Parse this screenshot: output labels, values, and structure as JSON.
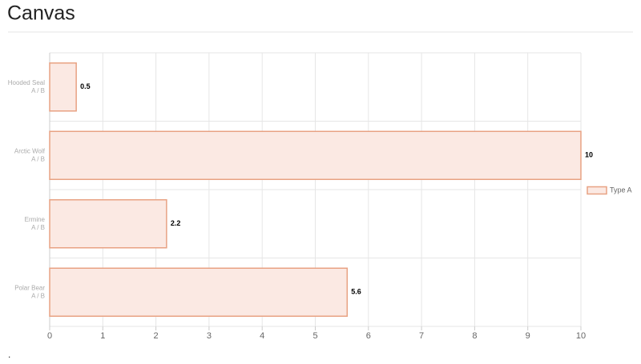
{
  "page_title": "Canvas",
  "footer_text": ".",
  "chart_data": {
    "type": "bar",
    "orientation": "horizontal",
    "categories": [
      "Hooded Seal",
      "Arctic Wolf",
      "Ermine",
      "Polar Bear"
    ],
    "category_sublabels": [
      "A / B",
      "A / B",
      "A / B",
      "A / B"
    ],
    "series": [
      {
        "name": "Type A",
        "color": "#e8a283",
        "fill": "#fbe9e3",
        "values": [
          0.5,
          10,
          2.2,
          5.6
        ]
      }
    ],
    "xlim": [
      0,
      10
    ],
    "xticks": [
      0,
      1,
      2,
      3,
      4,
      5,
      6,
      7,
      8,
      9,
      10
    ],
    "grid": true,
    "legend": "right"
  }
}
